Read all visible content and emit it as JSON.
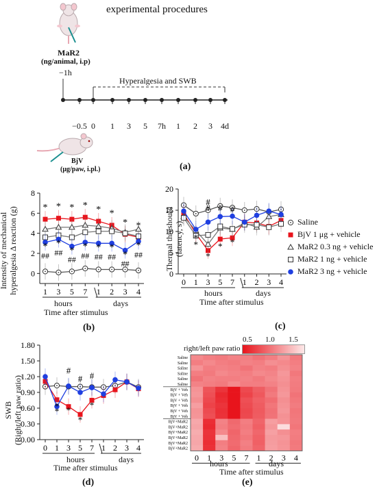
{
  "panel_a": {
    "title": "experimental procedures",
    "drug_label": "MaR2",
    "drug_dose": "(ng/animal, i.p)",
    "drug_time": "−1h",
    "window_label": "Hyperalgesia and SWB",
    "ticks": [
      "−0.5",
      "0",
      "1",
      "3",
      "5",
      "7h",
      "1",
      "2",
      "3",
      "4d"
    ],
    "stim_label": "BjV",
    "stim_dose": "(μg/paw, i.pl.)",
    "panel_label": "(a)"
  },
  "panel_b": {
    "ylabel_line1": "Intensity of mechanical",
    "ylabel_line2": "hyperalgesia Δ reaction (g)",
    "xlabel": "Time after stimulus",
    "group1": "hours",
    "group2": "days",
    "panel_label": "(b)",
    "star": "*",
    "hash": "##"
  },
  "panel_c": {
    "ylabel_line1": "Thermal threshould",
    "ylabel_line2": "(latency, s)",
    "xlabel": "Time after stimulus",
    "group1": "hours",
    "group2": "days",
    "panel_label": "(c)",
    "star": "*",
    "hash": "#"
  },
  "panel_d": {
    "ylabel_line1": "SWB",
    "ylabel_line2": "(Right/left paw ratio)",
    "xlabel": "Time after stimulus",
    "group1": "hours",
    "group2": "days",
    "panel_label": "(d)",
    "star": "*",
    "hash": "#"
  },
  "panel_e": {
    "scale_title": "right/left paw ratio",
    "scale_ticks": [
      "0.5",
      "1.0",
      "1.5"
    ],
    "xlabel": "Time after stimulus",
    "group1": "hours",
    "group2": "days",
    "panel_label": "(e)",
    "row_labels": [
      "Saline",
      "Saline",
      "Saline",
      "Saline",
      "Saline",
      "Saline",
      "BjV + Veh",
      "BjV + Veh",
      "BjV + Veh",
      "BjV + Veh",
      "BjV + Veh",
      "BjV + Veh",
      "BjV+MaR2",
      "BjV+MaR2",
      "BjV+MaR2",
      "BjV+MaR2",
      "BjV+MaR2",
      "BjV+MaR2"
    ],
    "color_low": "#e8141c",
    "color_high": "#fde8e8"
  },
  "legend": [
    {
      "label": "Saline",
      "marker": "circle-dot",
      "color": "#333333"
    },
    {
      "label": "BjV 1 μg + vehicle",
      "marker": "square",
      "color": "#e8141c"
    },
    {
      "label": "MaR2 0.3 ng + vehicle",
      "marker": "triangle",
      "color": "#333333"
    },
    {
      "label": "MaR2 1 ng + vehicle",
      "marker": "open-square",
      "color": "#333333"
    },
    {
      "label": "MaR2 3 ng + vehicle",
      "marker": "circle",
      "color": "#1f3fe0"
    }
  ],
  "chart_data": [
    {
      "type": "line",
      "title": "",
      "xlabel": "Time after stimulus",
      "ylabel": "Intensity of mechanical hyperalgesia Δ reaction (g)",
      "categories": [
        "1",
        "3",
        "5",
        "7",
        "1",
        "2",
        "3",
        "4"
      ],
      "ylim": [
        -1,
        8
      ],
      "yticks": [
        0,
        2,
        4,
        6,
        8
      ],
      "series": [
        {
          "name": "Saline",
          "values": [
            0.2,
            0.1,
            0.2,
            0.5,
            0.4,
            0.4,
            0.4,
            0.3
          ]
        },
        {
          "name": "BjV 1 μg + vehicle",
          "values": [
            5.4,
            5.5,
            5.4,
            5.6,
            5.2,
            4.8,
            3.9,
            3.6
          ]
        },
        {
          "name": "MaR2 0.3 ng + vehicle",
          "values": [
            4.4,
            4.6,
            4.6,
            4.8,
            4.7,
            4.5,
            4.1,
            4.4
          ]
        },
        {
          "name": "MaR2 1 ng + vehicle",
          "values": [
            3.6,
            3.8,
            3.6,
            4.1,
            4.2,
            4.2,
            4.0,
            3.7
          ]
        },
        {
          "name": "MaR2 3 ng + vehicle",
          "values": [
            3.1,
            3.4,
            2.7,
            3.1,
            3.0,
            3.0,
            2.3,
            3.2
          ]
        }
      ]
    },
    {
      "type": "line",
      "title": "",
      "xlabel": "Time after stimulus",
      "ylabel": "Thermal threshould (latency, s)",
      "categories": [
        "0",
        "1",
        "3",
        "5",
        "7",
        "1",
        "2",
        "3",
        "4"
      ],
      "ylim": [
        0,
        20
      ],
      "yticks": [
        0,
        5,
        10,
        15,
        20
      ],
      "series": [
        {
          "name": "Saline",
          "values": [
            16.2,
            14.2,
            15.0,
            16.0,
            15.6,
            15.0,
            15.3,
            14.6,
            15.2
          ]
        },
        {
          "name": "BjV 1 μg + vehicle",
          "values": [
            14.2,
            9.5,
            5.5,
            8.2,
            8.5,
            12.2,
            12.0,
            11.2,
            12.6
          ]
        },
        {
          "name": "MaR2 0.3 ng + vehicle",
          "values": [
            13.5,
            10.2,
            7.0,
            10.8,
            10.5,
            12.0,
            11.0,
            13.5,
            14.0
          ]
        },
        {
          "name": "MaR2 1 ng + vehicle",
          "values": [
            13.2,
            9.0,
            9.2,
            11.2,
            10.6,
            11.6,
            11.6,
            11.0,
            11.8
          ]
        },
        {
          "name": "MaR2 3 ng + vehicle",
          "values": [
            14.8,
            10.5,
            12.2,
            13.5,
            13.6,
            12.2,
            13.8,
            14.8,
            14.0
          ]
        }
      ]
    },
    {
      "type": "line",
      "title": "",
      "xlabel": "Time after stimulus",
      "ylabel": "SWB (Right/left paw ratio)",
      "categories": [
        "0",
        "1",
        "3",
        "5",
        "7",
        "1",
        "2",
        "3",
        "4"
      ],
      "ylim": [
        0,
        1.8
      ],
      "yticks": [
        0.0,
        0.3,
        0.6,
        0.9,
        1.2,
        1.5,
        1.8
      ],
      "series": [
        {
          "name": "Saline",
          "values": [
            1.01,
            1.03,
            1.01,
            1.01,
            1.0,
            1.0,
            1.03,
            1.1,
            1.0
          ]
        },
        {
          "name": "BjV 1 μg + vehicle",
          "values": [
            1.11,
            0.76,
            0.63,
            0.48,
            0.75,
            0.84,
            0.95,
            1.1,
            0.97
          ]
        },
        {
          "name": "MaR2 3 ng + vehicle",
          "values": [
            1.2,
            0.63,
            1.02,
            0.9,
            0.99,
            0.87,
            1.14,
            1.1,
            0.98
          ]
        }
      ]
    },
    {
      "type": "heatmap",
      "title": "",
      "xlabel": "Time after stimulus",
      "categories": [
        "0",
        "1",
        "3",
        "5",
        "7",
        "1",
        "2",
        "3",
        "4"
      ],
      "rows": [
        "Saline",
        "Saline",
        "Saline",
        "Saline",
        "Saline",
        "Saline",
        "BjV + Veh",
        "BjV + Veh",
        "BjV + Veh",
        "BjV + Veh",
        "BjV + Veh",
        "BjV + Veh",
        "BjV+MaR2",
        "BjV+MaR2",
        "BjV+MaR2",
        "BjV+MaR2",
        "BjV+MaR2",
        "BjV+MaR2"
      ],
      "colorbar": [
        0.5,
        1.5
      ],
      "values": [
        [
          1.05,
          1.0,
          0.98,
          1.02,
          1.0,
          0.95,
          1.0,
          1.1,
          0.98
        ],
        [
          1.0,
          1.05,
          1.0,
          0.98,
          1.02,
          1.0,
          1.08,
          1.05,
          1.0
        ],
        [
          1.1,
          1.0,
          1.02,
          1.0,
          0.95,
          1.02,
          1.0,
          1.08,
          1.02
        ],
        [
          1.0,
          0.98,
          1.05,
          1.02,
          1.0,
          1.05,
          1.03,
          1.12,
          0.97
        ],
        [
          0.95,
          1.02,
          1.0,
          1.0,
          1.02,
          0.98,
          1.05,
          1.1,
          1.0
        ],
        [
          1.02,
          1.0,
          0.98,
          1.05,
          1.0,
          1.0,
          1.02,
          1.08,
          0.99
        ],
        [
          1.1,
          0.8,
          0.65,
          0.5,
          0.75,
          0.85,
          0.95,
          1.1,
          0.98
        ],
        [
          1.12,
          0.78,
          0.6,
          0.45,
          0.72,
          0.82,
          0.98,
          1.12,
          0.95
        ],
        [
          1.08,
          0.75,
          0.62,
          0.48,
          0.78,
          0.86,
          0.92,
          1.08,
          0.97
        ],
        [
          1.15,
          0.72,
          0.65,
          0.5,
          0.76,
          0.84,
          0.96,
          1.1,
          0.99
        ],
        [
          1.1,
          0.76,
          0.63,
          0.47,
          0.74,
          0.83,
          0.94,
          1.12,
          0.96
        ],
        [
          1.11,
          0.78,
          0.64,
          0.5,
          0.75,
          0.84,
          0.95,
          1.09,
          0.97
        ],
        [
          1.2,
          0.62,
          1.02,
          0.9,
          1.0,
          0.88,
          1.15,
          1.1,
          0.98
        ],
        [
          1.18,
          0.6,
          1.0,
          0.92,
          0.98,
          0.86,
          1.12,
          1.45,
          0.96
        ],
        [
          1.22,
          0.65,
          1.05,
          0.88,
          1.0,
          0.89,
          1.16,
          1.08,
          1.0
        ],
        [
          1.2,
          0.64,
          1.3,
          0.9,
          0.97,
          0.87,
          1.13,
          1.12,
          0.99
        ],
        [
          1.19,
          0.62,
          1.0,
          0.91,
          1.01,
          0.86,
          1.14,
          1.1,
          0.97
        ],
        [
          1.21,
          0.63,
          1.02,
          0.89,
          0.99,
          0.88,
          1.15,
          1.11,
          0.98
        ]
      ]
    }
  ]
}
